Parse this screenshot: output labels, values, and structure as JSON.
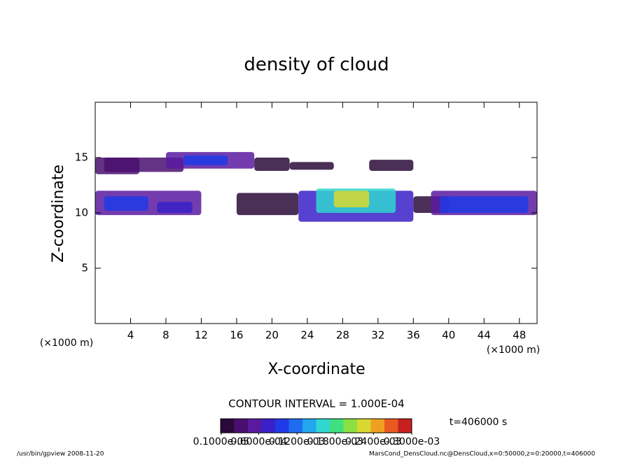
{
  "chart_data": {
    "type": "contour",
    "title": "density of cloud",
    "xlabel": "X-coordinate",
    "ylabel": "Z-coordinate",
    "x_unit": "(×1000 m)",
    "xlim": [
      0,
      50
    ],
    "ylim": [
      0,
      20
    ],
    "xticks": [
      4,
      8,
      12,
      16,
      20,
      24,
      28,
      32,
      36,
      40,
      44,
      48
    ],
    "yticks": [
      5,
      10,
      15
    ],
    "contour_interval": "CONTOUR INTERVAL = 1.000E-04",
    "time_label": "t=406000 s",
    "clim": [
      0,
      0.0003
    ],
    "colormap": [
      "#2a0a3a",
      "#4a0f6e",
      "#5a1aa0",
      "#3a20c8",
      "#1f3ae6",
      "#1e6cf0",
      "#22a6f0",
      "#30d6d0",
      "#40e080",
      "#8ae040",
      "#d8d830",
      "#f0a020",
      "#e85a20",
      "#c82020"
    ],
    "colorbar_ticks": [
      {
        "value": 1e-06,
        "label": "0.1000e-05"
      },
      {
        "value": 6e-05,
        "label": "0.6000e-04"
      },
      {
        "value": 0.00012,
        "label": "0.1200e-03"
      },
      {
        "value": 0.00018,
        "label": "0.1800e-03"
      },
      {
        "value": 0.00024,
        "label": "0.2400e-03"
      },
      {
        "value": 0.0003,
        "label": "0.3000e-03"
      }
    ],
    "cells": {
      "x": [
        [
          0,
          5
        ],
        [
          1,
          10
        ],
        [
          8,
          18
        ],
        [
          10,
          15
        ],
        [
          18,
          22
        ],
        [
          22,
          27
        ],
        [
          31,
          36
        ],
        [
          0,
          12
        ],
        [
          1,
          6
        ],
        [
          7,
          11
        ],
        [
          16,
          23
        ],
        [
          23,
          36
        ],
        [
          25,
          34
        ],
        [
          27,
          31
        ],
        [
          36,
          40
        ],
        [
          38,
          50
        ],
        [
          39,
          49
        ]
      ],
      "z": [
        [
          13.5,
          15
        ],
        [
          13.7,
          15
        ],
        [
          14,
          15.5
        ],
        [
          14.3,
          15.2
        ],
        [
          13.8,
          15
        ],
        [
          13.9,
          14.6
        ],
        [
          13.8,
          14.8
        ],
        [
          9.8,
          12
        ],
        [
          10.2,
          11.5
        ],
        [
          10,
          11
        ],
        [
          9.8,
          11.8
        ],
        [
          9.2,
          12
        ],
        [
          10,
          12.2
        ],
        [
          10.5,
          12
        ],
        [
          10,
          11.5
        ],
        [
          9.8,
          12
        ],
        [
          10,
          11.5
        ]
      ],
      "values": [
        3e-05,
        4e-05,
        5e-05,
        0.0001,
        2e-05,
        2e-05,
        2e-05,
        5e-05,
        0.0001,
        8e-05,
        2e-05,
        8e-05,
        0.00015,
        0.00022,
        2e-05,
        5e-05,
        0.0001
      ]
    },
    "footer_left": "/usr/bin/gpview  2008-11-20",
    "footer_right": "MarsCond_DensCloud.nc@DensCloud,x=0:50000,z=0:20000,t=406000"
  }
}
